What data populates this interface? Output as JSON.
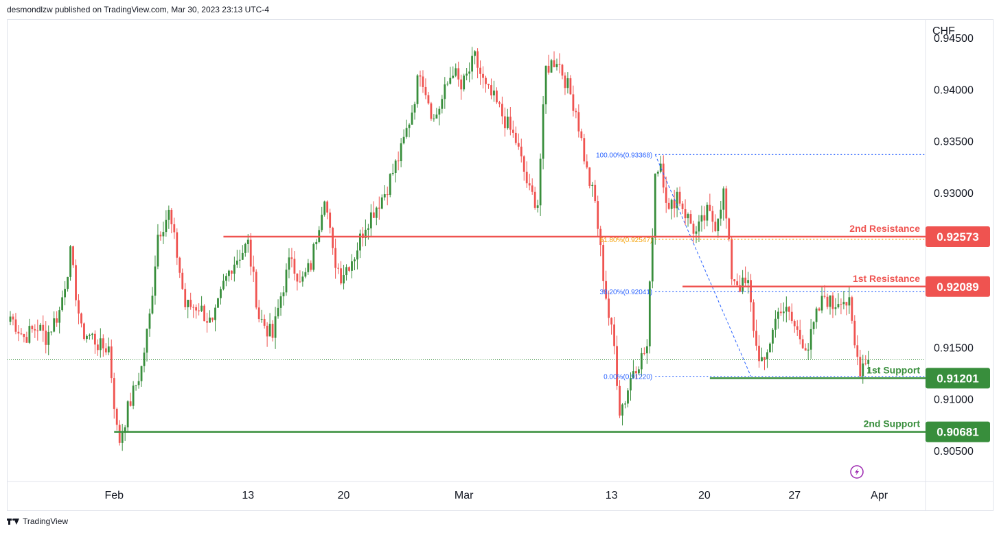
{
  "header": {
    "attribution": "desmondlzw published on TradingView.com, Mar 30, 2023 23:13 UTC-4"
  },
  "footer": {
    "brand": "TradingView",
    "logo_icon": "tradingview-logo-icon"
  },
  "colors": {
    "up": "#388e3c",
    "down": "#ef5350",
    "resistance": "#ef5350",
    "support": "#388e3c",
    "fib_line": "#2962ff",
    "fib_golden": "#f59f00",
    "axis_text": "#131722",
    "grid": "#e0e3eb"
  },
  "chart_data": {
    "type": "candlestick",
    "symbol_currency": "CHF",
    "ylim": [
      0.902,
      0.9468
    ],
    "y_ticks": [
      "0.94500",
      "0.94000",
      "0.93500",
      "0.93000",
      "0.91500",
      "0.91000",
      "0.90500"
    ],
    "x_ticks": [
      {
        "label": "Feb",
        "bar": 38
      },
      {
        "label": "13",
        "bar": 87
      },
      {
        "label": "20",
        "bar": 122
      },
      {
        "label": "Mar",
        "bar": 166
      },
      {
        "label": "13",
        "bar": 220
      },
      {
        "label": "20",
        "bar": 254
      },
      {
        "label": "27",
        "bar": 287
      },
      {
        "label": "Apr",
        "bar": 318
      }
    ],
    "bar_count": 333,
    "last_close": 0.9138,
    "ohlc_anchors": [
      [
        0,
        0.918
      ],
      [
        5,
        0.916
      ],
      [
        10,
        0.917
      ],
      [
        13,
        0.916
      ],
      [
        18,
        0.9185
      ],
      [
        22,
        0.924
      ],
      [
        26,
        0.9165
      ],
      [
        30,
        0.916
      ],
      [
        33,
        0.915
      ],
      [
        36,
        0.915
      ],
      [
        39,
        0.907
      ],
      [
        40,
        0.906
      ],
      [
        43,
        0.909
      ],
      [
        48,
        0.913
      ],
      [
        51,
        0.918
      ],
      [
        54,
        0.926
      ],
      [
        58,
        0.928
      ],
      [
        61,
        0.924
      ],
      [
        64,
        0.919
      ],
      [
        69,
        0.919
      ],
      [
        74,
        0.917
      ],
      [
        78,
        0.921
      ],
      [
        81,
        0.923
      ],
      [
        87,
        0.925
      ],
      [
        91,
        0.918
      ],
      [
        96,
        0.916
      ],
      [
        99,
        0.92
      ],
      [
        103,
        0.924
      ],
      [
        106,
        0.921
      ],
      [
        110,
        0.923
      ],
      [
        115,
        0.93
      ],
      [
        118,
        0.924
      ],
      [
        121,
        0.922
      ],
      [
        126,
        0.924
      ],
      [
        130,
        0.927
      ],
      [
        137,
        0.93
      ],
      [
        143,
        0.934
      ],
      [
        147,
        0.938
      ],
      [
        150,
        0.942
      ],
      [
        155,
        0.937
      ],
      [
        158,
        0.939
      ],
      [
        162,
        0.942
      ],
      [
        165,
        0.94
      ],
      [
        170,
        0.943
      ],
      [
        174,
        0.94
      ],
      [
        177,
        0.939
      ],
      [
        181,
        0.937
      ],
      [
        185,
        0.935
      ],
      [
        190,
        0.93
      ],
      [
        193,
        0.929
      ],
      [
        196,
        0.942
      ],
      [
        200,
        0.943
      ],
      [
        203,
        0.941
      ],
      [
        207,
        0.938
      ],
      [
        211,
        0.932
      ],
      [
        214,
        0.929
      ],
      [
        217,
        0.922
      ],
      [
        219,
        0.918
      ],
      [
        221,
        0.915
      ],
      [
        223,
        0.909
      ],
      [
        225,
        0.91
      ],
      [
        228,
        0.913
      ],
      [
        231,
        0.914
      ],
      [
        233,
        0.915
      ],
      [
        236,
        0.932
      ],
      [
        238,
        0.933
      ],
      [
        241,
        0.928
      ],
      [
        244,
        0.93
      ],
      [
        247,
        0.928
      ],
      [
        251,
        0.926
      ],
      [
        255,
        0.928
      ],
      [
        258,
        0.927
      ],
      [
        261,
        0.93
      ],
      [
        264,
        0.922
      ],
      [
        267,
        0.921
      ],
      [
        270,
        0.921
      ],
      [
        273,
        0.915
      ],
      [
        276,
        0.913
      ],
      [
        279,
        0.917
      ],
      [
        282,
        0.919
      ],
      [
        285,
        0.918
      ],
      [
        289,
        0.916
      ],
      [
        292,
        0.915
      ],
      [
        295,
        0.918
      ],
      [
        298,
        0.92
      ],
      [
        301,
        0.919
      ],
      [
        304,
        0.92
      ],
      [
        307,
        0.919
      ],
      [
        309,
        0.915
      ],
      [
        311,
        0.913
      ],
      [
        313,
        0.914
      ],
      [
        314,
        0.9138
      ]
    ],
    "fibonacci": [
      {
        "label": "100.00%(0.93368)",
        "value": 0.93368
      },
      {
        "label": "61.80%(0.92547)",
        "value": 0.92547
      },
      {
        "label": "38.20%(0.92041)",
        "value": 0.92041
      },
      {
        "label": "0.00%(0.91220)",
        "value": 0.9122
      }
    ],
    "levels": [
      {
        "name": "2nd Resistance",
        "value": 0.92573,
        "display": "0.92573",
        "kind": "resistance",
        "from_bar": 78
      },
      {
        "name": "1st Resistance",
        "value": 0.92089,
        "display": "0.92089",
        "kind": "resistance",
        "from_bar": 246
      },
      {
        "name": "1st Support",
        "value": 0.91201,
        "display": "0.91201",
        "kind": "support",
        "from_bar": 256
      },
      {
        "name": "2nd Support",
        "value": 0.90681,
        "display": "0.90681",
        "kind": "support",
        "from_bar": 38
      }
    ],
    "icons": [
      "lightning-icon"
    ]
  }
}
